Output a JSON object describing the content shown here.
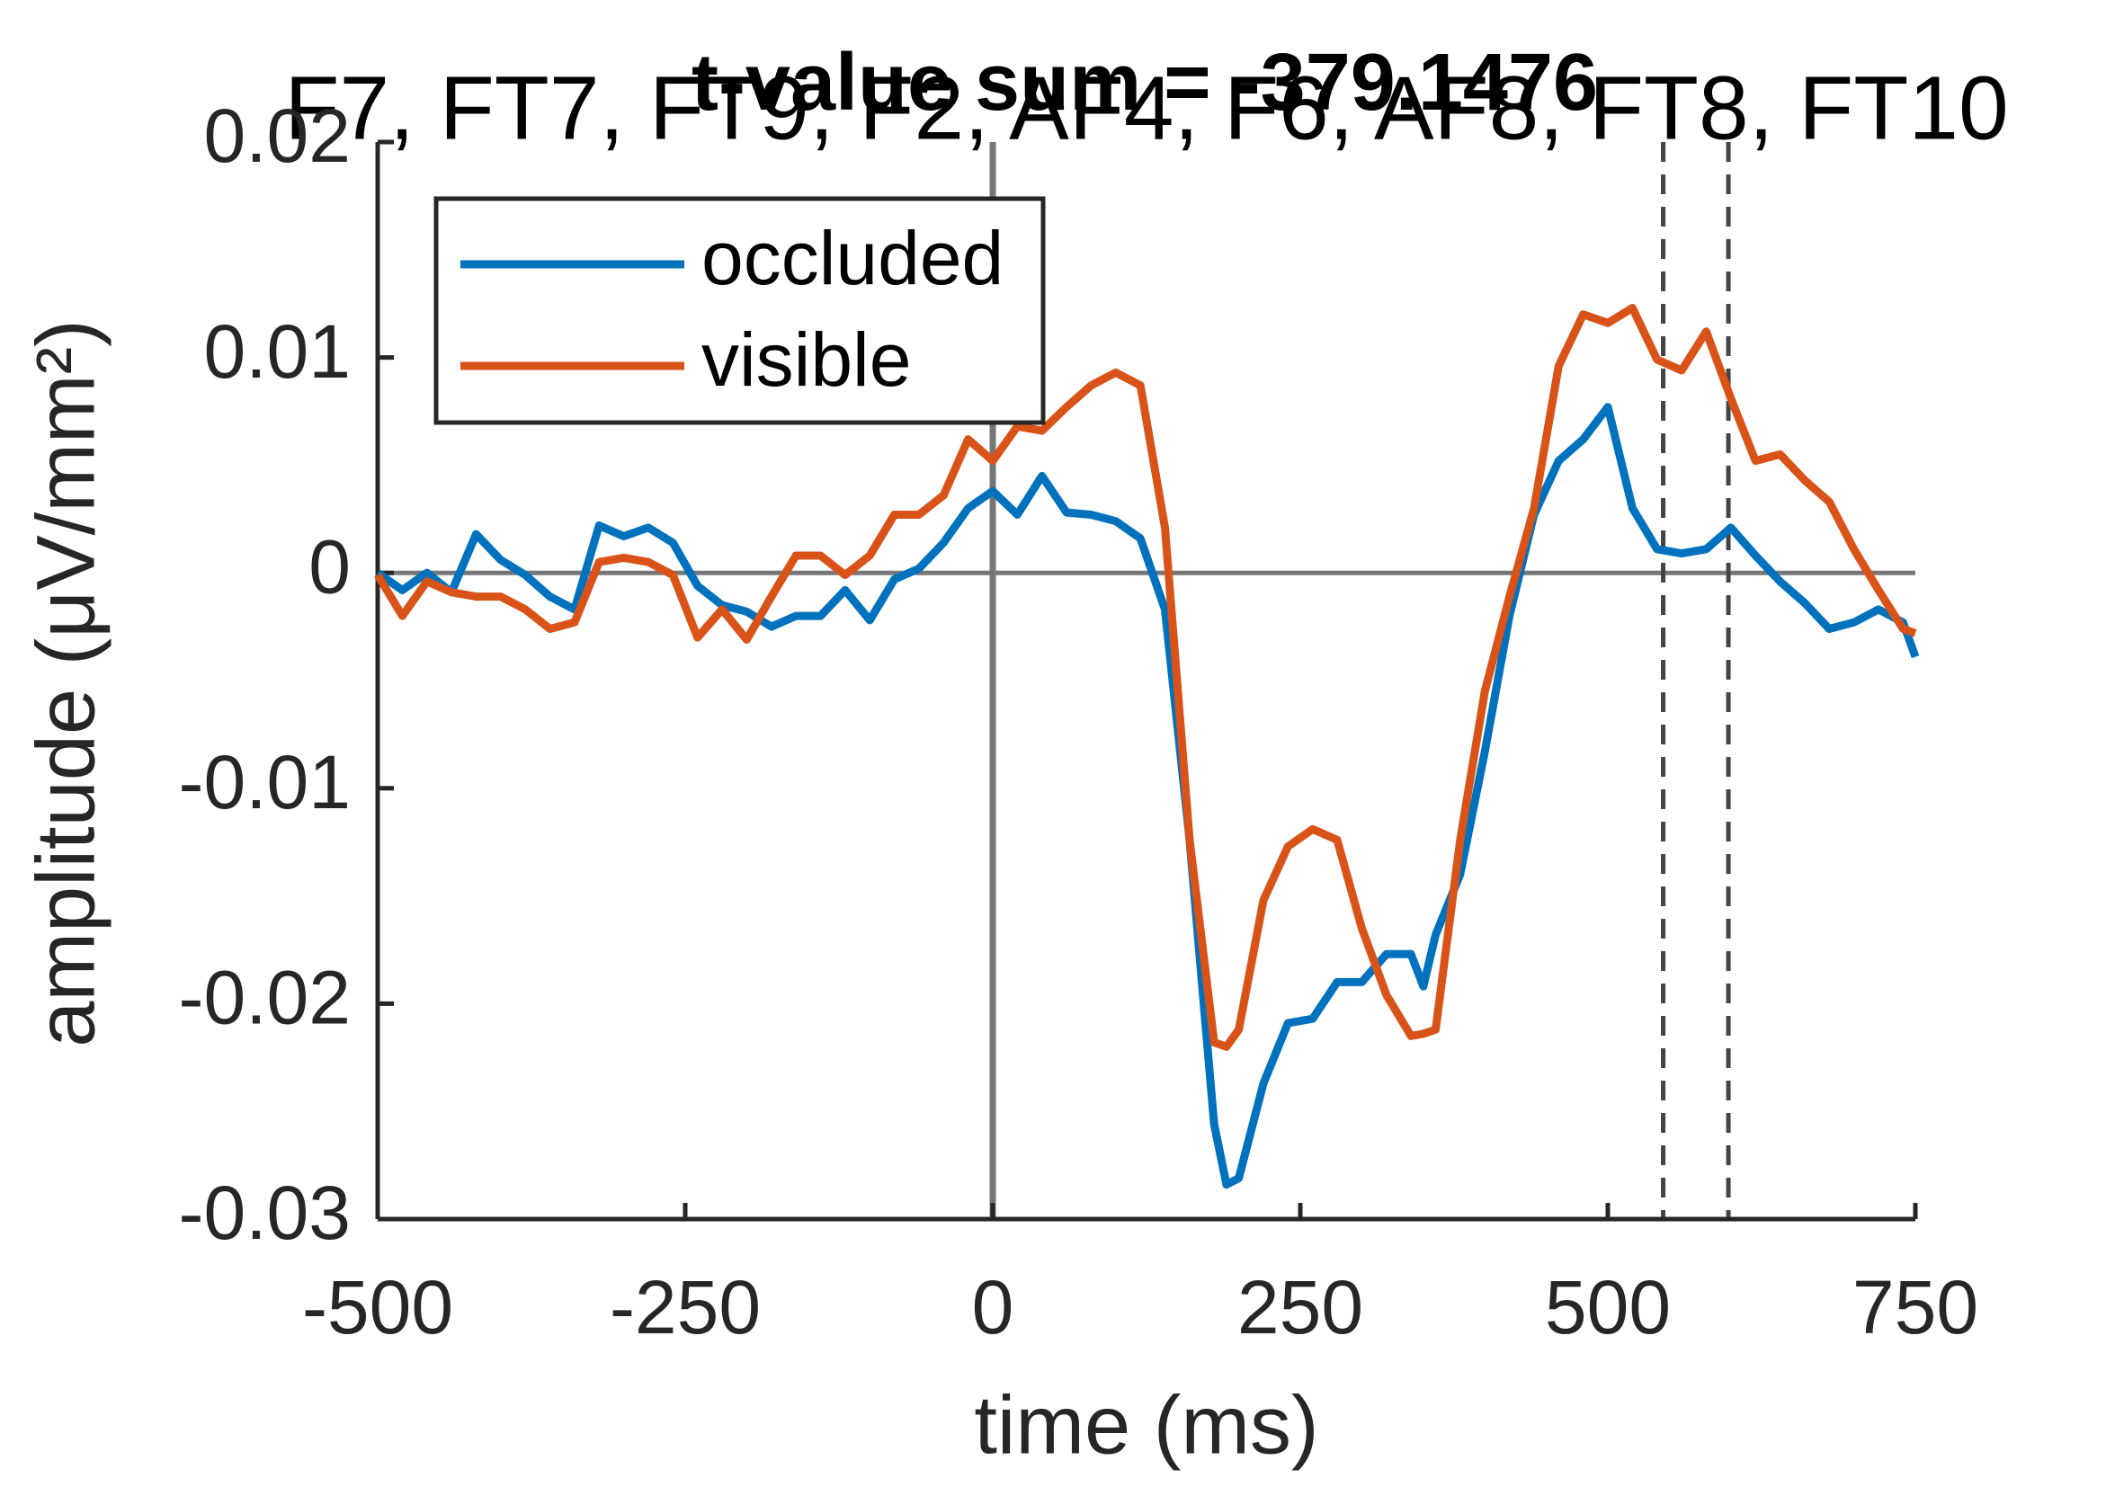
{
  "chart_data": {
    "type": "line",
    "title": "F7, FT7, FT9, F2, AF4, F6, AF8, FT8, FT10",
    "subtitle": "t-value sum = -379.1476",
    "x_label": "time (ms)",
    "y_label": "amplitude (μV/mm²)",
    "x": [
      -500,
      -480,
      -460,
      -440,
      -420,
      -400,
      -380,
      -360,
      -340,
      -320,
      -300,
      -280,
      -260,
      -240,
      -220,
      -200,
      -180,
      -160,
      -140,
      -120,
      -100,
      -80,
      -60,
      -40,
      -20,
      0,
      20,
      40,
      60,
      80,
      100,
      120,
      140,
      160,
      180,
      190,
      200,
      220,
      240,
      260,
      280,
      300,
      320,
      340,
      350,
      360,
      380,
      400,
      420,
      440,
      460,
      480,
      500,
      520,
      540,
      560,
      580,
      600,
      620,
      640,
      660,
      680,
      700,
      720,
      740,
      750
    ],
    "series": [
      {
        "name": "occluded",
        "color": "#0072bd",
        "values": [
          0,
          -0.0008,
          0,
          -0.0009,
          0.0018,
          0.0006,
          -0.0001,
          -0.0011,
          -0.0017,
          0.0022,
          0.0017,
          0.0021,
          0.0014,
          -0.0006,
          -0.0015,
          -0.0018,
          -0.0025,
          -0.002,
          -0.002,
          -0.0008,
          -0.0022,
          -0.0003,
          0.0002,
          0.0014,
          0.003,
          0.0038,
          0.0027,
          0.0045,
          0.0028,
          0.0027,
          0.0024,
          0.0016,
          -0.0017,
          -0.0124,
          -0.0256,
          -0.0284,
          -0.0281,
          -0.0237,
          -0.0209,
          -0.0207,
          -0.019,
          -0.019,
          -0.0177,
          -0.0177,
          -0.0192,
          -0.0168,
          -0.014,
          -0.0083,
          -0.002,
          0.0027,
          0.0052,
          0.0062,
          0.0077,
          0.003,
          0.0011,
          0.0009,
          0.0011,
          0.0021,
          0.0008,
          -0.0004,
          -0.0014,
          -0.0026,
          -0.0023,
          -0.0017,
          -0.0023,
          -0.0039
        ]
      },
      {
        "name": "visible",
        "color": "#d95319",
        "values": [
          -0.0001,
          -0.002,
          -0.0004,
          -0.0009,
          -0.0011,
          -0.0011,
          -0.0017,
          -0.0026,
          -0.0023,
          0.0005,
          0.0007,
          0.0005,
          -0.0001,
          -0.003,
          -0.0017,
          -0.0031,
          -0.0011,
          0.0008,
          0.0008,
          -0.0001,
          0.0008,
          0.0027,
          0.0027,
          0.0036,
          0.0062,
          0.0052,
          0.0068,
          0.0066,
          0.0077,
          0.0087,
          0.0093,
          0.0087,
          0.0021,
          -0.0124,
          -0.0218,
          -0.022,
          -0.0212,
          -0.0152,
          -0.0127,
          -0.0119,
          -0.0124,
          -0.0165,
          -0.0196,
          -0.0215,
          -0.0214,
          -0.0212,
          -0.0124,
          -0.0055,
          -0.0011,
          0.003,
          0.0096,
          0.012,
          0.0116,
          0.0123,
          0.0099,
          0.0094,
          0.0112,
          0.0081,
          0.0052,
          0.0055,
          0.0043,
          0.0033,
          0.0011,
          -0.0008,
          -0.0026,
          -0.0028
        ]
      }
    ],
    "xlim": [
      -500,
      750
    ],
    "xticks": [
      -500,
      -250,
      0,
      250,
      500,
      750
    ],
    "ylim": [
      -0.03,
      0.02
    ],
    "yticks": [
      -0.03,
      -0.02,
      -0.01,
      0,
      0.01,
      0.02
    ],
    "vlines": [
      545,
      598
    ],
    "legend": "upper left"
  }
}
